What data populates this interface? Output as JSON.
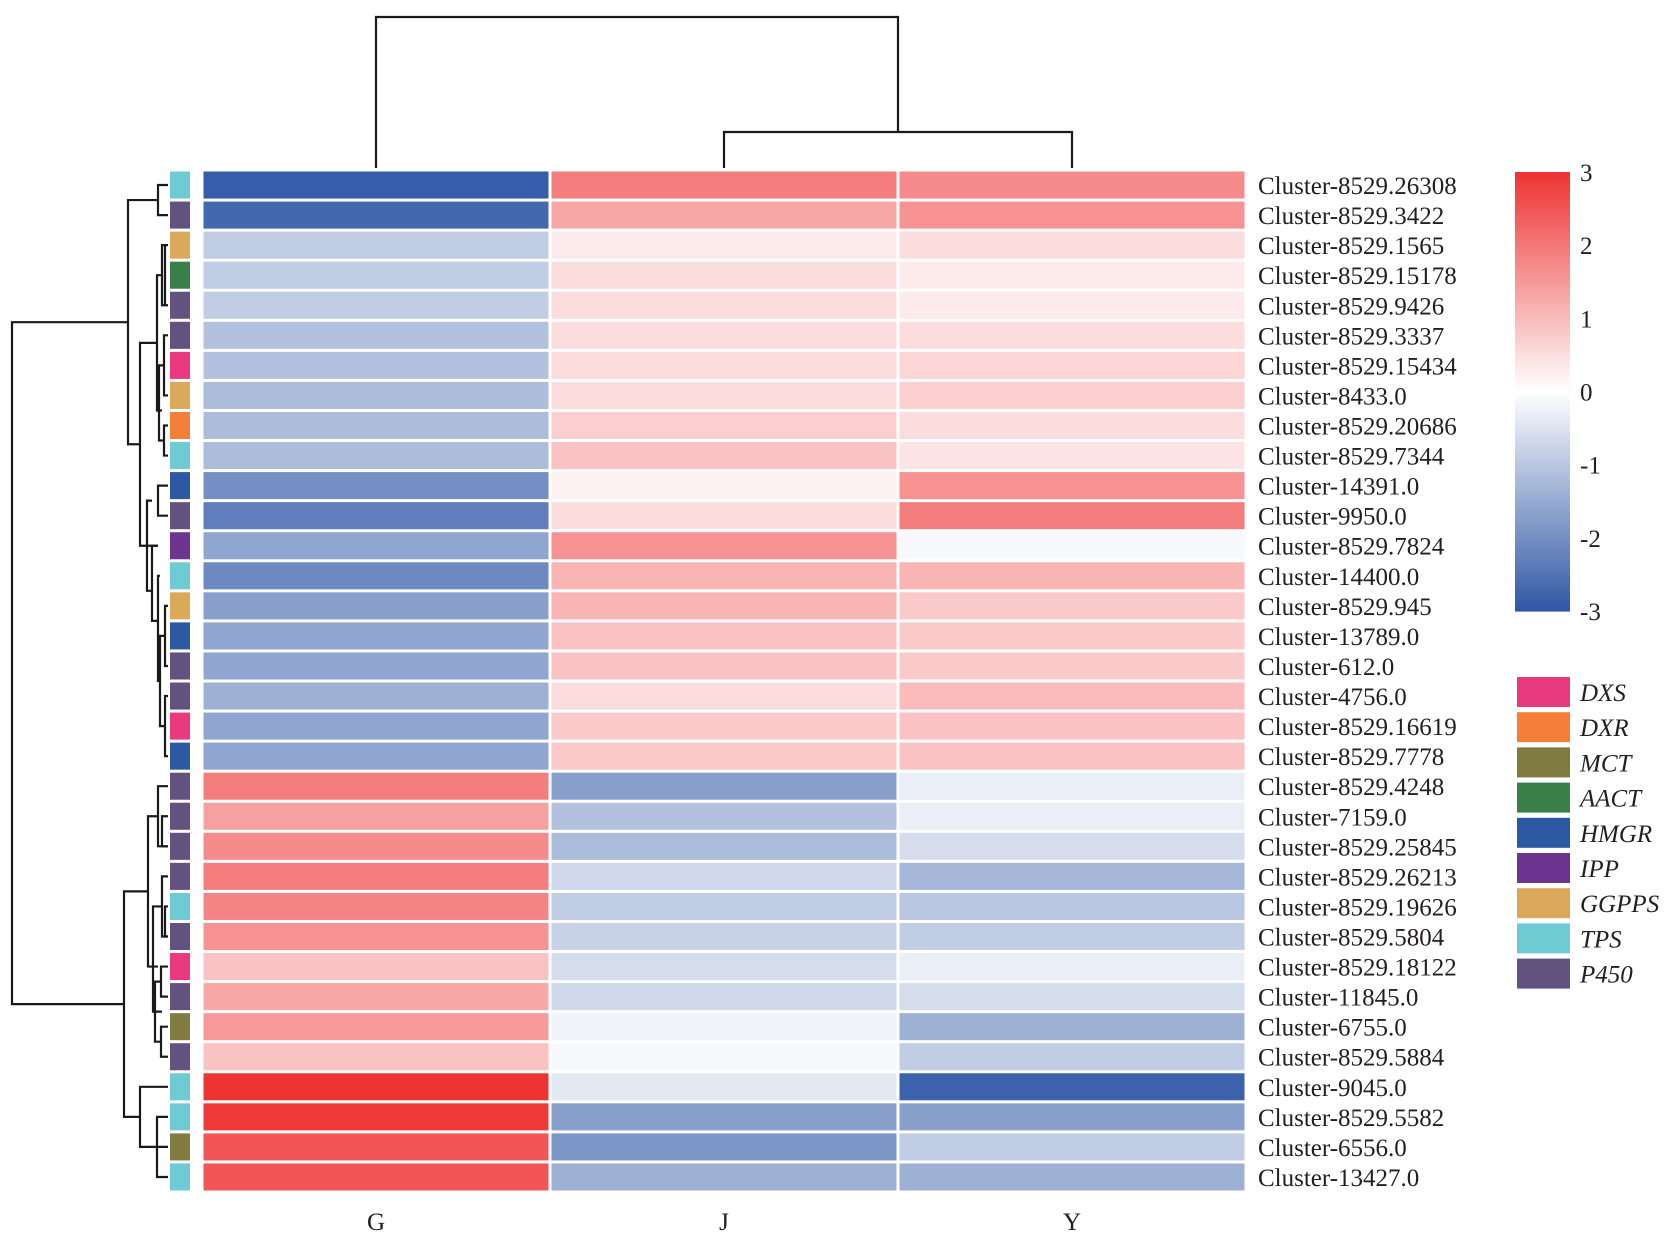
{
  "chart_data": {
    "type": "heatmap",
    "title": "",
    "columns": [
      "G",
      "J",
      "Y"
    ],
    "rows": [
      {
        "label": "Cluster-8529.26308",
        "gene": "TPS",
        "values": [
          -2.9,
          1.9,
          1.7
        ]
      },
      {
        "label": "Cluster-8529.3422",
        "gene": "P450",
        "values": [
          -2.7,
          1.3,
          1.6
        ]
      },
      {
        "label": "Cluster-8529.1565",
        "gene": "GGPPS",
        "values": [
          -0.9,
          0.3,
          0.5
        ]
      },
      {
        "label": "Cluster-8529.15178",
        "gene": "AACT",
        "values": [
          -0.9,
          0.5,
          0.3
        ]
      },
      {
        "label": "Cluster-8529.9426",
        "gene": "P450",
        "values": [
          -0.9,
          0.5,
          0.3
        ]
      },
      {
        "label": "Cluster-8529.3337",
        "gene": "P450",
        "values": [
          -1.1,
          0.5,
          0.5
        ]
      },
      {
        "label": "Cluster-8529.15434",
        "gene": "DXS",
        "values": [
          -1.1,
          0.5,
          0.6
        ]
      },
      {
        "label": "Cluster-8433.0",
        "gene": "GGPPS",
        "values": [
          -1.2,
          0.5,
          0.7
        ]
      },
      {
        "label": "Cluster-8529.20686",
        "gene": "DXR",
        "values": [
          -1.2,
          0.7,
          0.5
        ]
      },
      {
        "label": "Cluster-8529.7344",
        "gene": "TPS",
        "values": [
          -1.2,
          0.9,
          0.4
        ]
      },
      {
        "label": "Cluster-14391.0",
        "gene": "HMGR",
        "values": [
          -2.0,
          0.2,
          1.6
        ]
      },
      {
        "label": "Cluster-9950.0",
        "gene": "P450",
        "values": [
          -2.3,
          0.5,
          1.9
        ]
      },
      {
        "label": "Cluster-8529.7824",
        "gene": "IPP",
        "values": [
          -1.6,
          1.6,
          -0.1
        ]
      },
      {
        "label": "Cluster-14400.0",
        "gene": "TPS",
        "values": [
          -2.1,
          1.1,
          1.1
        ]
      },
      {
        "label": "Cluster-8529.945",
        "gene": "GGPPS",
        "values": [
          -1.7,
          1.1,
          0.8
        ]
      },
      {
        "label": "Cluster-13789.0",
        "gene": "HMGR",
        "values": [
          -1.6,
          0.9,
          0.8
        ]
      },
      {
        "label": "Cluster-612.0",
        "gene": "P450",
        "values": [
          -1.6,
          0.9,
          0.8
        ]
      },
      {
        "label": "Cluster-4756.0",
        "gene": "P450",
        "values": [
          -1.4,
          0.5,
          1.0
        ]
      },
      {
        "label": "Cluster-8529.16619",
        "gene": "DXS",
        "values": [
          -1.6,
          0.8,
          0.9
        ]
      },
      {
        "label": "Cluster-8529.7778",
        "gene": "HMGR",
        "values": [
          -1.6,
          0.8,
          0.9
        ]
      },
      {
        "label": "Cluster-8529.4248",
        "gene": "P450",
        "values": [
          1.9,
          -1.7,
          -0.3
        ]
      },
      {
        "label": "Cluster-7159.0",
        "gene": "P450",
        "values": [
          1.4,
          -1.1,
          -0.3
        ]
      },
      {
        "label": "Cluster-8529.25845",
        "gene": "P450",
        "values": [
          1.7,
          -1.2,
          -0.6
        ]
      },
      {
        "label": "Cluster-8529.26213",
        "gene": "P450",
        "values": [
          1.9,
          -0.7,
          -1.3
        ]
      },
      {
        "label": "Cluster-8529.19626",
        "gene": "TPS",
        "values": [
          1.8,
          -0.9,
          -1.0
        ]
      },
      {
        "label": "Cluster-8529.5804",
        "gene": "P450",
        "values": [
          1.6,
          -0.8,
          -0.9
        ]
      },
      {
        "label": "Cluster-8529.18122",
        "gene": "DXS",
        "values": [
          0.9,
          -0.6,
          -0.3
        ]
      },
      {
        "label": "Cluster-11845.0",
        "gene": "P450",
        "values": [
          1.3,
          -0.7,
          -0.6
        ]
      },
      {
        "label": "Cluster-6755.0",
        "gene": "MCT",
        "values": [
          1.5,
          -0.2,
          -1.4
        ]
      },
      {
        "label": "Cluster-8529.5884",
        "gene": "P450",
        "values": [
          0.9,
          -0.1,
          -0.9
        ]
      },
      {
        "label": "Cluster-9045.0",
        "gene": "TPS",
        "values": [
          3.0,
          -0.4,
          -2.8
        ]
      },
      {
        "label": "Cluster-8529.5582",
        "gene": "TPS",
        "values": [
          2.9,
          -1.7,
          -1.7
        ]
      },
      {
        "label": "Cluster-6556.0",
        "gene": "MCT",
        "values": [
          2.5,
          -1.9,
          -0.9
        ]
      },
      {
        "label": "Cluster-13427.0",
        "gene": "TPS",
        "values": [
          2.5,
          -1.4,
          -1.4
        ]
      }
    ],
    "color_scale": {
      "range": [
        -3,
        3
      ],
      "ticks": [
        "3",
        "2",
        "1",
        "0",
        "-1",
        "-2",
        "-3"
      ],
      "low_color": "#2f57a6",
      "mid_color": "#ffffff",
      "high_color": "#ee3333"
    },
    "legend": {
      "placement": "right",
      "items": [
        {
          "label": "DXS",
          "color": "#e9397f"
        },
        {
          "label": "DXR",
          "color": "#f37f38"
        },
        {
          "label": "MCT",
          "color": "#807c41"
        },
        {
          "label": "AACT",
          "color": "#3a7f4a"
        },
        {
          "label": "HMGR",
          "color": "#2d58a4"
        },
        {
          "label": "IPP",
          "color": "#6e3590"
        },
        {
          "label": "GGPPS",
          "color": "#dba95a"
        },
        {
          "label": "TPS",
          "color": "#6ecbd4"
        },
        {
          "label": "P450",
          "color": "#62527f"
        }
      ]
    },
    "column_dendrogram": "(G,(J,Y))",
    "row_dendrogram_clusters": [
      {
        "name": "upper",
        "rows_from": "Cluster-8529.26308",
        "rows_to": "Cluster-8529.7778"
      },
      {
        "name": "lower",
        "rows_from": "Cluster-8529.4248",
        "rows_to": "Cluster-13427.0"
      }
    ]
  }
}
